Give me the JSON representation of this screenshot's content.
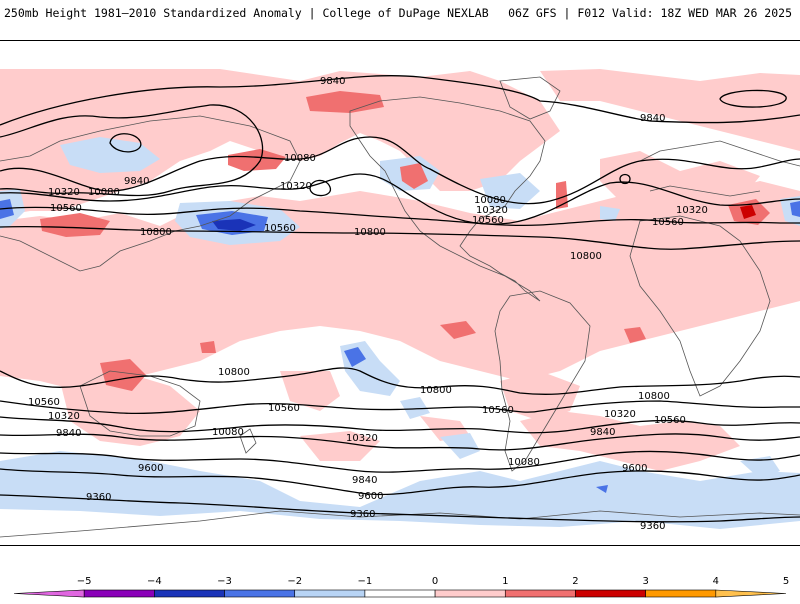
{
  "header": {
    "title_left": "250mb Height 1981–2010 Standardized Anomaly | College of DuPage NEXLAB",
    "title_right": "06Z GFS | F012 Valid: 18Z WED MAR 26 2025"
  },
  "colorbar": {
    "ticks": [
      "−5",
      "−4",
      "−3",
      "−2",
      "−1",
      "0",
      "1",
      "2",
      "3",
      "4",
      "5"
    ],
    "colors": [
      "#e066e0",
      "#8a00b8",
      "#1a33b8",
      "#4a73e6",
      "#b8d4f5",
      "#ffffff",
      "#ffcccc",
      "#f07070",
      "#cc0000",
      "#ff9900",
      "#ffc04d"
    ]
  },
  "map": {
    "contour_labels": {
      "c9840_n": "9840",
      "c9840_ne": "9840",
      "c10080_pac": "10080",
      "c10320_pac": "10320",
      "c10080_w": "10080",
      "c10320_w": "10320",
      "c9840_w": "9840",
      "c10560_w": "10560",
      "c10560_pac": "10560",
      "c10800_w": "10800",
      "c10800_pac": "10800",
      "c10080_us": "10080",
      "c10320_us": "10320",
      "c10560_us": "10560",
      "c10320_eu": "10320",
      "c10560_eu": "10560",
      "c10800_atl": "10800",
      "s10800_w": "10800",
      "s10800_pac": "10800",
      "s10800_atl": "10800",
      "s10560_w": "10560",
      "s10560_pac": "10560",
      "s10560_sa": "10560",
      "s10560_e": "10560",
      "s10320_w": "10320",
      "s10320_pac": "10320",
      "s10320_e": "10320",
      "s10080_w": "10080",
      "s10080_sa": "10080",
      "s9840_w": "9840",
      "s9840_pac": "9840",
      "s9840_e": "9840",
      "s9600_w": "9600",
      "s9600_pac": "9600",
      "s9600_e": "9600",
      "s9360_w": "9360",
      "s9360_pac": "9360",
      "s9360_e": "9360"
    }
  }
}
